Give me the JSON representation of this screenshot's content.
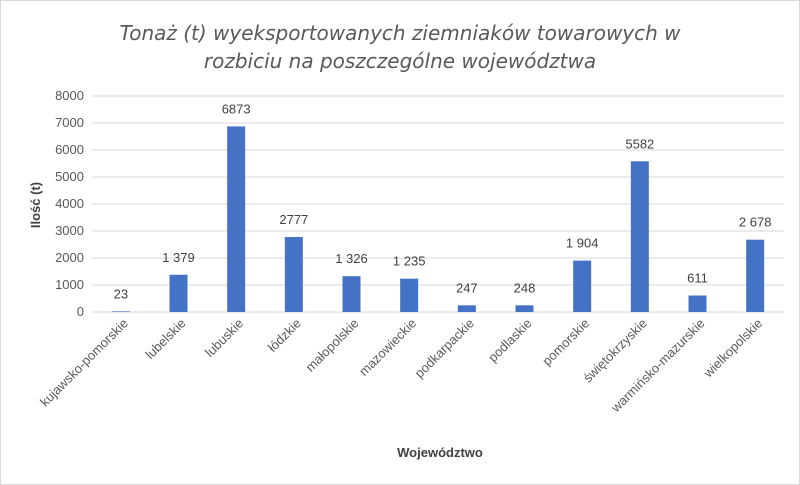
{
  "chart_data": {
    "type": "bar",
    "title_lines": [
      "Tonaż (t) wyeksportowanych ziemniaków towarowych w",
      "rozbiciu na poszczególne województwa"
    ],
    "xlabel": "Województwo",
    "ylabel": "Ilość (t)",
    "ylim": [
      0,
      8000
    ],
    "yticks": [
      "0",
      "1000",
      "2000",
      "3000",
      "4000",
      "5000",
      "6000",
      "7000",
      "8000"
    ],
    "grid": true,
    "legend": "none",
    "bar_color": "#4472c4",
    "categories": [
      "kujawsko-pomorskie",
      "lubelskie",
      "lubuskie",
      "łódzkie",
      "małopolskie",
      "mazowieckie",
      "podkarpackie",
      "podlaskie",
      "pomorskie",
      "świętokrzyskie",
      "warmińsko-mazurskie",
      "wielkopolskie"
    ],
    "values": [
      23,
      1379,
      6873,
      2777,
      1326,
      1235,
      247,
      248,
      1904,
      5582,
      611,
      2678
    ],
    "data_labels": [
      "23",
      "1 379",
      "6873",
      "2777",
      "1 326",
      "1 235",
      "247",
      "248",
      "1 904",
      "5582",
      "611",
      "2 678"
    ]
  }
}
